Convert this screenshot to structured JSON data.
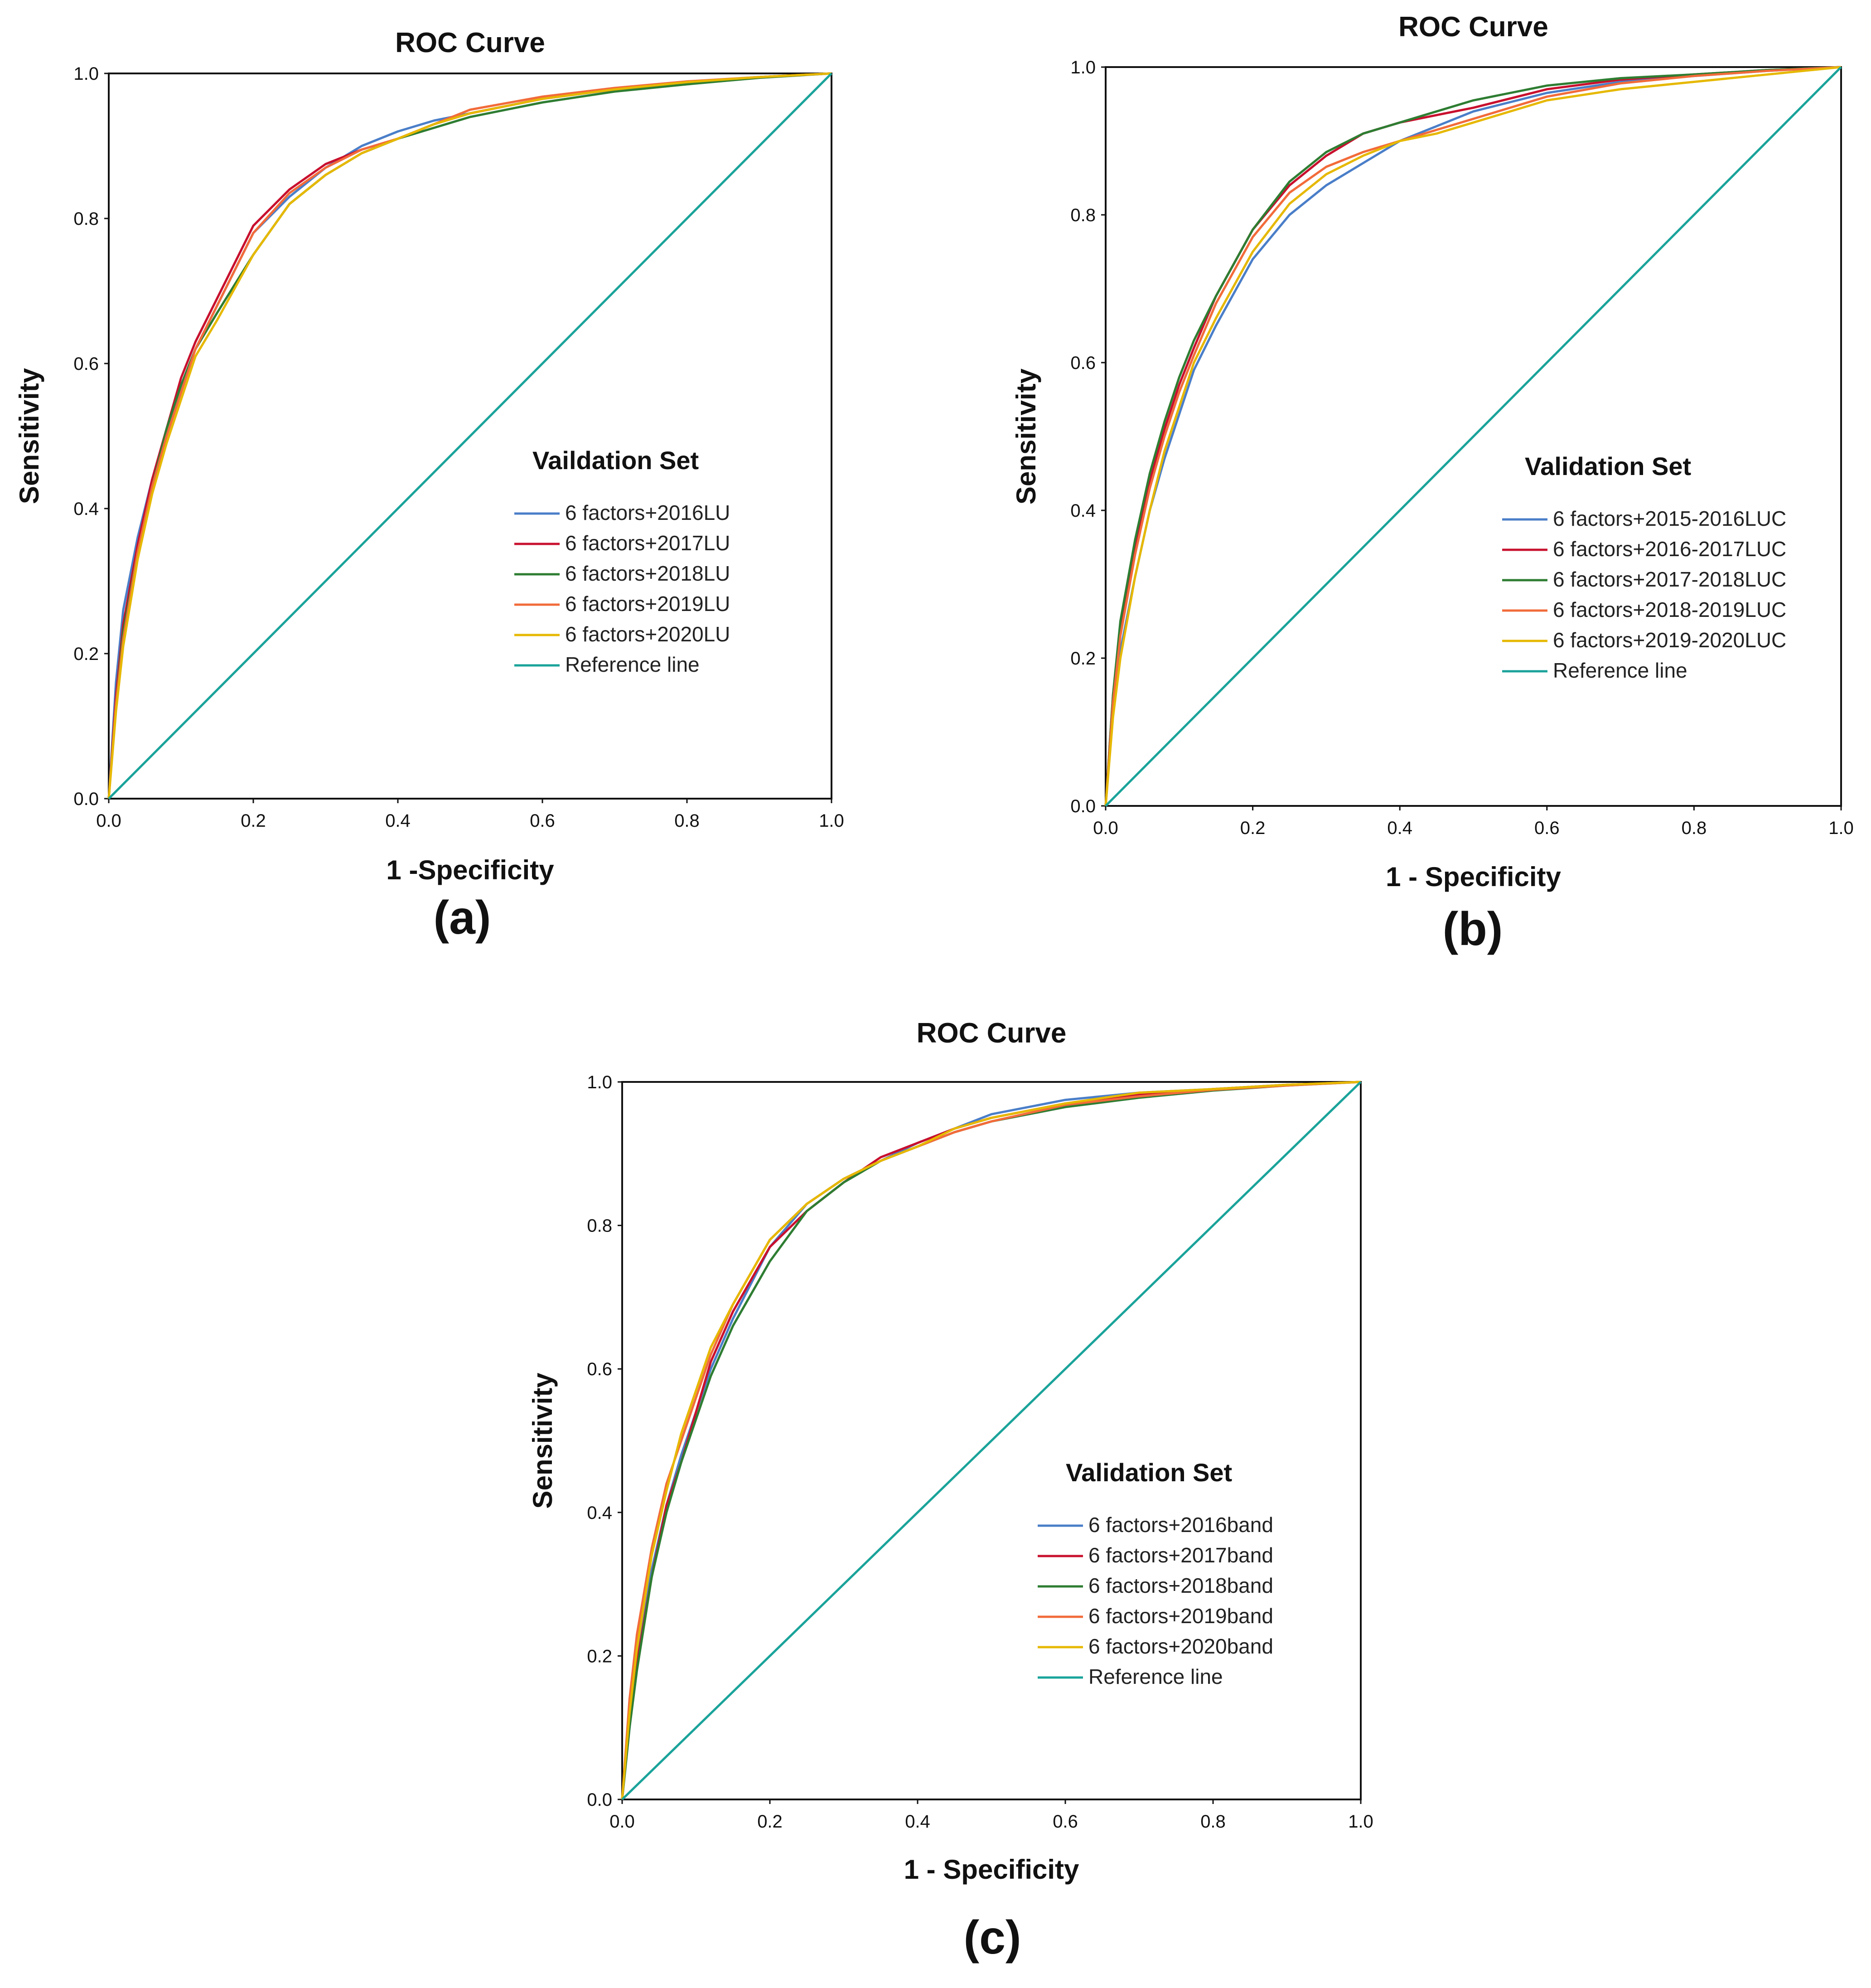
{
  "chart_data": [
    {
      "type": "line",
      "panel": "a",
      "caption": "(a)",
      "title": "ROC Curve",
      "xlabel": "1 -Specificity",
      "ylabel": "Sensitivity",
      "xlim": [
        0,
        1
      ],
      "ylim": [
        0,
        1
      ],
      "xticks": [
        "0.0",
        "0.2",
        "0.4",
        "0.6",
        "0.8",
        "1.0"
      ],
      "yticks": [
        "0.0",
        "0.2",
        "0.4",
        "0.6",
        "0.8",
        "1.0"
      ],
      "legend_title": "Vaildation Set",
      "legend_position": "center-right",
      "series": [
        {
          "name": "6 factors+2016LU",
          "color": "#4a7ec8",
          "x": [
            0,
            0.01,
            0.02,
            0.04,
            0.06,
            0.08,
            0.1,
            0.12,
            0.15,
            0.2,
            0.25,
            0.3,
            0.35,
            0.4,
            0.45,
            0.5,
            0.6,
            0.7,
            0.8,
            0.9,
            1.0
          ],
          "y": [
            0,
            0.16,
            0.26,
            0.36,
            0.44,
            0.51,
            0.57,
            0.62,
            0.68,
            0.78,
            0.83,
            0.87,
            0.9,
            0.92,
            0.935,
            0.945,
            0.965,
            0.978,
            0.988,
            0.995,
            1.0
          ]
        },
        {
          "name": "6 factors+2017LU",
          "color": "#c8102e",
          "x": [
            0,
            0.01,
            0.02,
            0.04,
            0.06,
            0.08,
            0.1,
            0.12,
            0.15,
            0.2,
            0.25,
            0.3,
            0.35,
            0.4,
            0.45,
            0.5,
            0.6,
            0.7,
            0.8,
            0.9,
            1.0
          ],
          "y": [
            0,
            0.14,
            0.24,
            0.35,
            0.44,
            0.51,
            0.58,
            0.63,
            0.69,
            0.79,
            0.84,
            0.875,
            0.895,
            0.91,
            0.93,
            0.945,
            0.965,
            0.978,
            0.988,
            0.995,
            1.0
          ]
        },
        {
          "name": "6 factors+2018LU",
          "color": "#2e7d32",
          "x": [
            0,
            0.01,
            0.02,
            0.04,
            0.06,
            0.08,
            0.1,
            0.12,
            0.15,
            0.2,
            0.25,
            0.3,
            0.35,
            0.4,
            0.45,
            0.5,
            0.6,
            0.7,
            0.8,
            0.9,
            1.0
          ],
          "y": [
            0,
            0.13,
            0.23,
            0.34,
            0.43,
            0.51,
            0.57,
            0.62,
            0.67,
            0.75,
            0.82,
            0.86,
            0.89,
            0.91,
            0.925,
            0.94,
            0.96,
            0.975,
            0.985,
            0.994,
            1.0
          ]
        },
        {
          "name": "6 factors+2019LU",
          "color": "#f26b3a",
          "x": [
            0,
            0.01,
            0.02,
            0.04,
            0.06,
            0.08,
            0.1,
            0.12,
            0.15,
            0.2,
            0.25,
            0.3,
            0.35,
            0.4,
            0.45,
            0.5,
            0.6,
            0.7,
            0.8,
            0.9,
            1.0
          ],
          "y": [
            0,
            0.13,
            0.22,
            0.34,
            0.43,
            0.5,
            0.56,
            0.62,
            0.68,
            0.78,
            0.835,
            0.87,
            0.895,
            0.91,
            0.93,
            0.95,
            0.968,
            0.98,
            0.989,
            0.995,
            1.0
          ]
        },
        {
          "name": "6 factors+2020LU",
          "color": "#e6b800",
          "x": [
            0,
            0.01,
            0.02,
            0.04,
            0.06,
            0.08,
            0.1,
            0.12,
            0.15,
            0.2,
            0.25,
            0.3,
            0.35,
            0.4,
            0.45,
            0.5,
            0.6,
            0.7,
            0.8,
            0.9,
            1.0
          ],
          "y": [
            0,
            0.12,
            0.21,
            0.33,
            0.42,
            0.49,
            0.55,
            0.61,
            0.66,
            0.75,
            0.82,
            0.86,
            0.89,
            0.91,
            0.93,
            0.945,
            0.965,
            0.978,
            0.988,
            0.995,
            1.0
          ]
        },
        {
          "name": "Reference line",
          "color": "#1aa39a",
          "x": [
            0,
            1
          ],
          "y": [
            0,
            1
          ]
        }
      ]
    },
    {
      "type": "line",
      "panel": "b",
      "caption": "(b)",
      "title": "ROC Curve",
      "xlabel": "1 - Specificity",
      "ylabel": "Sensitivity",
      "xlim": [
        0,
        1
      ],
      "ylim": [
        0,
        1
      ],
      "xticks": [
        "0.0",
        "0.2",
        "0.4",
        "0.6",
        "0.8",
        "1.0"
      ],
      "yticks": [
        "0.0",
        "0.2",
        "0.4",
        "0.6",
        "0.8",
        "1.0"
      ],
      "legend_title": "Validation Set",
      "legend_position": "center-right",
      "series": [
        {
          "name": "6 factors+2015-2016LUC",
          "color": "#4a7ec8",
          "x": [
            0,
            0.01,
            0.02,
            0.04,
            0.06,
            0.08,
            0.1,
            0.12,
            0.15,
            0.2,
            0.25,
            0.3,
            0.35,
            0.4,
            0.45,
            0.5,
            0.6,
            0.7,
            0.8,
            0.9,
            1.0
          ],
          "y": [
            0,
            0.13,
            0.21,
            0.31,
            0.4,
            0.47,
            0.53,
            0.59,
            0.65,
            0.74,
            0.8,
            0.84,
            0.87,
            0.9,
            0.92,
            0.94,
            0.965,
            0.98,
            0.988,
            0.995,
            1.0
          ]
        },
        {
          "name": "6 factors+2016-2017LUC",
          "color": "#c8102e",
          "x": [
            0,
            0.01,
            0.02,
            0.04,
            0.06,
            0.08,
            0.1,
            0.12,
            0.15,
            0.2,
            0.25,
            0.3,
            0.35,
            0.4,
            0.45,
            0.5,
            0.6,
            0.7,
            0.8,
            0.9,
            1.0
          ],
          "y": [
            0,
            0.15,
            0.24,
            0.35,
            0.44,
            0.51,
            0.57,
            0.62,
            0.69,
            0.78,
            0.84,
            0.88,
            0.91,
            0.925,
            0.935,
            0.945,
            0.97,
            0.983,
            0.99,
            0.996,
            1.0
          ]
        },
        {
          "name": "6 factors+2017-2018LUC",
          "color": "#2e7d32",
          "x": [
            0,
            0.01,
            0.02,
            0.04,
            0.06,
            0.08,
            0.1,
            0.12,
            0.15,
            0.2,
            0.25,
            0.3,
            0.35,
            0.4,
            0.45,
            0.5,
            0.6,
            0.7,
            0.8,
            0.9,
            1.0
          ],
          "y": [
            0,
            0.15,
            0.25,
            0.36,
            0.45,
            0.52,
            0.58,
            0.63,
            0.69,
            0.78,
            0.845,
            0.885,
            0.91,
            0.925,
            0.94,
            0.955,
            0.975,
            0.985,
            0.99,
            0.996,
            1.0
          ]
        },
        {
          "name": "6 factors+2018-2019LUC",
          "color": "#f26b3a",
          "x": [
            0,
            0.01,
            0.02,
            0.04,
            0.06,
            0.08,
            0.1,
            0.12,
            0.15,
            0.2,
            0.25,
            0.3,
            0.35,
            0.4,
            0.45,
            0.5,
            0.6,
            0.7,
            0.8,
            0.9,
            1.0
          ],
          "y": [
            0,
            0.14,
            0.23,
            0.34,
            0.43,
            0.5,
            0.56,
            0.61,
            0.68,
            0.77,
            0.83,
            0.865,
            0.885,
            0.9,
            0.915,
            0.93,
            0.96,
            0.978,
            0.988,
            0.995,
            1.0
          ]
        },
        {
          "name": "6 factors+2019-2020LUC",
          "color": "#e6b800",
          "x": [
            0,
            0.01,
            0.02,
            0.04,
            0.06,
            0.08,
            0.1,
            0.12,
            0.15,
            0.2,
            0.25,
            0.3,
            0.35,
            0.4,
            0.45,
            0.5,
            0.6,
            0.7,
            0.8,
            0.9,
            1.0
          ],
          "y": [
            0,
            0.12,
            0.2,
            0.31,
            0.4,
            0.48,
            0.54,
            0.6,
            0.66,
            0.75,
            0.815,
            0.855,
            0.88,
            0.9,
            0.91,
            0.925,
            0.955,
            0.97,
            0.98,
            0.99,
            1.0
          ]
        },
        {
          "name": "Reference line",
          "color": "#1aa39a",
          "x": [
            0,
            1
          ],
          "y": [
            0,
            1
          ]
        }
      ]
    },
    {
      "type": "line",
      "panel": "c",
      "caption": "(c)",
      "title": "ROC Curve",
      "xlabel": "1 - Specificity",
      "ylabel": "Sensitivity",
      "xlim": [
        0,
        1
      ],
      "ylim": [
        0,
        1
      ],
      "xticks": [
        "0.0",
        "0.2",
        "0.4",
        "0.6",
        "0.8",
        "1.0"
      ],
      "yticks": [
        "0.0",
        "0.2",
        "0.4",
        "0.6",
        "0.8",
        "1.0"
      ],
      "legend_title": "Validation Set",
      "legend_position": "center-right",
      "series": [
        {
          "name": "6 factors+2016band",
          "color": "#4a7ec8",
          "x": [
            0,
            0.01,
            0.02,
            0.04,
            0.06,
            0.08,
            0.1,
            0.12,
            0.15,
            0.2,
            0.25,
            0.3,
            0.35,
            0.4,
            0.45,
            0.5,
            0.6,
            0.7,
            0.8,
            0.9,
            1.0
          ],
          "y": [
            0,
            0.1,
            0.19,
            0.32,
            0.41,
            0.48,
            0.54,
            0.6,
            0.67,
            0.77,
            0.83,
            0.865,
            0.89,
            0.915,
            0.935,
            0.955,
            0.975,
            0.985,
            0.99,
            0.996,
            1.0
          ]
        },
        {
          "name": "6 factors+2017band",
          "color": "#c8102e",
          "x": [
            0,
            0.01,
            0.02,
            0.04,
            0.06,
            0.08,
            0.1,
            0.12,
            0.15,
            0.2,
            0.25,
            0.3,
            0.35,
            0.4,
            0.45,
            0.5,
            0.6,
            0.7,
            0.8,
            0.9,
            1.0
          ],
          "y": [
            0,
            0.11,
            0.19,
            0.31,
            0.41,
            0.47,
            0.54,
            0.61,
            0.68,
            0.77,
            0.82,
            0.86,
            0.895,
            0.915,
            0.935,
            0.95,
            0.97,
            0.983,
            0.99,
            0.996,
            1.0
          ]
        },
        {
          "name": "6 factors+2018band",
          "color": "#2e7d32",
          "x": [
            0,
            0.01,
            0.02,
            0.04,
            0.06,
            0.08,
            0.1,
            0.12,
            0.15,
            0.2,
            0.25,
            0.3,
            0.35,
            0.4,
            0.45,
            0.5,
            0.6,
            0.7,
            0.8,
            0.9,
            1.0
          ],
          "y": [
            0,
            0.1,
            0.18,
            0.31,
            0.4,
            0.47,
            0.53,
            0.59,
            0.66,
            0.75,
            0.82,
            0.86,
            0.89,
            0.91,
            0.93,
            0.945,
            0.965,
            0.978,
            0.988,
            0.995,
            1.0
          ]
        },
        {
          "name": "6 factors+2019band",
          "color": "#f26b3a",
          "x": [
            0,
            0.01,
            0.02,
            0.04,
            0.06,
            0.08,
            0.1,
            0.12,
            0.15,
            0.2,
            0.25,
            0.3,
            0.35,
            0.4,
            0.45,
            0.5,
            0.6,
            0.7,
            0.8,
            0.9,
            1.0
          ],
          "y": [
            0,
            0.14,
            0.23,
            0.35,
            0.44,
            0.5,
            0.56,
            0.62,
            0.69,
            0.78,
            0.83,
            0.865,
            0.89,
            0.91,
            0.93,
            0.945,
            0.968,
            0.98,
            0.989,
            0.995,
            1.0
          ]
        },
        {
          "name": "6 factors+2020band",
          "color": "#e6b800",
          "x": [
            0,
            0.01,
            0.02,
            0.04,
            0.06,
            0.08,
            0.1,
            0.12,
            0.15,
            0.2,
            0.25,
            0.3,
            0.35,
            0.4,
            0.45,
            0.5,
            0.6,
            0.7,
            0.8,
            0.9,
            1.0
          ],
          "y": [
            0,
            0.12,
            0.21,
            0.34,
            0.43,
            0.51,
            0.57,
            0.63,
            0.69,
            0.78,
            0.83,
            0.865,
            0.89,
            0.91,
            0.935,
            0.95,
            0.97,
            0.985,
            0.99,
            0.996,
            1.0
          ]
        },
        {
          "name": "Reference line",
          "color": "#1aa39a",
          "x": [
            0,
            1
          ],
          "y": [
            0,
            1
          ]
        }
      ]
    }
  ]
}
